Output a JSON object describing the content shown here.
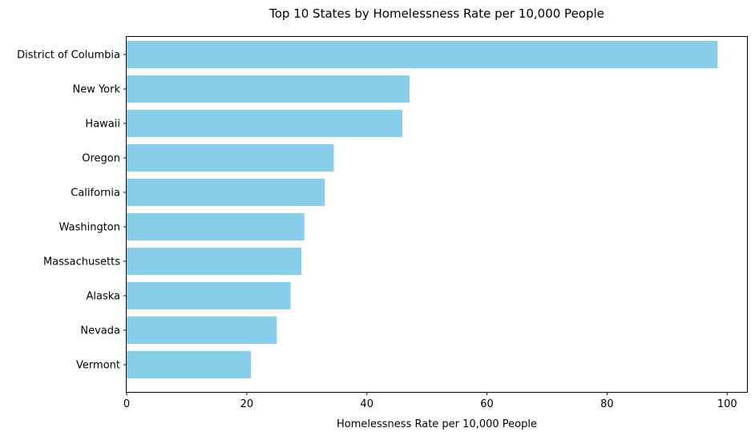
{
  "chart_data": {
    "type": "bar",
    "orientation": "horizontal",
    "title": "Top 10 States by Homelessness Rate per 10,000 People",
    "xlabel": "Homelessness Rate per 10,000 People",
    "ylabel": "",
    "categories": [
      "District of Columbia",
      "New York",
      "Hawaii",
      "Oregon",
      "California",
      "Washington",
      "Massachusetts",
      "Alaska",
      "Nevada",
      "Vermont"
    ],
    "values": [
      98.4,
      47.1,
      45.9,
      34.5,
      33.0,
      29.6,
      29.1,
      27.3,
      25.0,
      20.7
    ],
    "xlim": [
      0,
      103.3
    ],
    "xticks": [
      0,
      20,
      40,
      60,
      80,
      100
    ],
    "grid": false,
    "legend": "none",
    "colors": {
      "bar": "#87CEEB",
      "axis": "#000000",
      "background": "#ffffff"
    }
  }
}
